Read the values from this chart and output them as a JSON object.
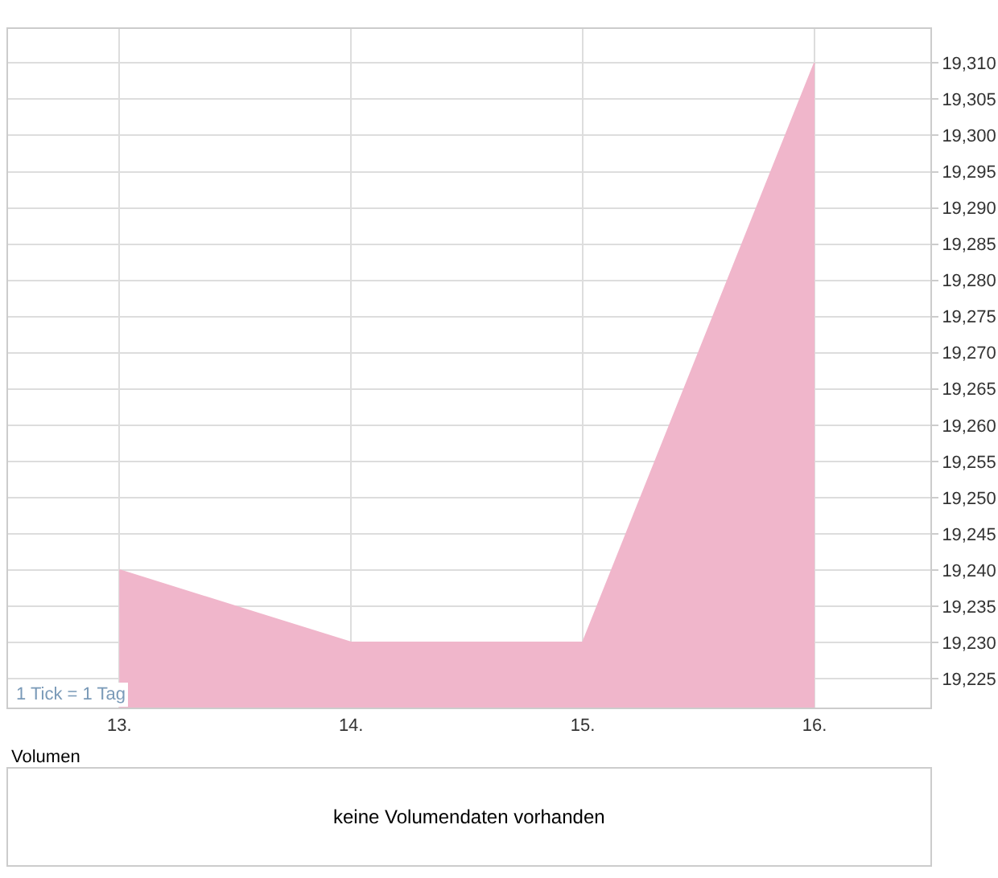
{
  "chart_data": [
    {
      "type": "area",
      "x": [
        13,
        14,
        15,
        16
      ],
      "series": [
        {
          "color": "#f0b6cb",
          "values": [
            19240,
            19230,
            19230,
            19310
          ]
        }
      ],
      "xlim": [
        12.52,
        16.5
      ],
      "xticks": [
        {
          "value": 13,
          "label": "13."
        },
        {
          "value": 14,
          "label": "14."
        },
        {
          "value": 15,
          "label": "15."
        },
        {
          "value": 16,
          "label": "16."
        }
      ],
      "ylim": [
        19221,
        19314.7
      ],
      "yticks": [
        {
          "value": 19225,
          "label": "19,225"
        },
        {
          "value": 19230,
          "label": "19,230"
        },
        {
          "value": 19235,
          "label": "19,235"
        },
        {
          "value": 19240,
          "label": "19,240"
        },
        {
          "value": 19245,
          "label": "19,245"
        },
        {
          "value": 19250,
          "label": "19,250"
        },
        {
          "value": 19255,
          "label": "19,255"
        },
        {
          "value": 19260,
          "label": "19,260"
        },
        {
          "value": 19265,
          "label": "19,265"
        },
        {
          "value": 19270,
          "label": "19,270"
        },
        {
          "value": 19275,
          "label": "19,275"
        },
        {
          "value": 19280,
          "label": "19,280"
        },
        {
          "value": 19285,
          "label": "19,285"
        },
        {
          "value": 19290,
          "label": "19,290"
        },
        {
          "value": 19295,
          "label": "19,295"
        },
        {
          "value": 19300,
          "label": "19,300"
        },
        {
          "value": 19305,
          "label": "19,305"
        },
        {
          "value": 19310,
          "label": "19,310"
        }
      ],
      "grid": true,
      "annotations": [
        "1 Tick = 1 Tag"
      ]
    },
    {
      "type": "other",
      "title": "Volumen",
      "annotations": [
        "keine Volumendaten vorhanden"
      ]
    }
  ]
}
